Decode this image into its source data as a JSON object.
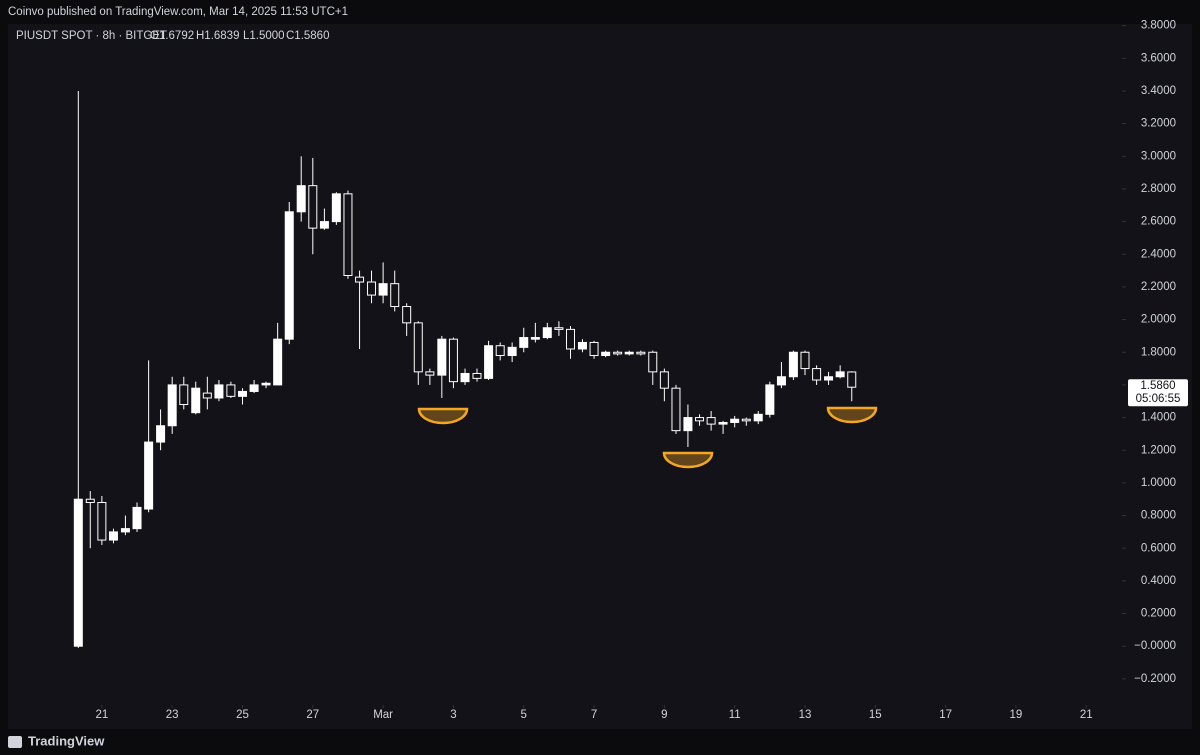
{
  "header": {
    "published": "Coinvo published on TradingView.com, Mar 14, 2025 11:53 UTC+1",
    "footer": "TradingView"
  },
  "chart_data": {
    "type": "candlestick",
    "symbol": "PIUSDT SPOT · 8h · BITGET",
    "ohlc_labels": [
      "O1.6792",
      "H1.6839",
      "L1.5000",
      "C1.5860"
    ],
    "price_label": {
      "value": 1.586,
      "label": "1.5860"
    },
    "countdown": "05:06:55",
    "colors": {
      "up": "#ffffff",
      "down": "#131218",
      "outline": "#ffffff",
      "annotation": "#f5a623"
    },
    "x": [
      -0.67,
      -0.33,
      0,
      0.33,
      0.67,
      1,
      1.33,
      1.67,
      2,
      2.33,
      2.67,
      3,
      3.33,
      3.67,
      4,
      4.33,
      4.67,
      5,
      5.33,
      5.67,
      6,
      6.33,
      6.67,
      7,
      7.33,
      7.67,
      8,
      8.33,
      8.67,
      9,
      9.33,
      9.67,
      10,
      10.33,
      10.67,
      11,
      11.33,
      11.67,
      12,
      12.33,
      12.67,
      13,
      13.33,
      13.67,
      14,
      14.33,
      14.67,
      15,
      15.33,
      15.67,
      16,
      16.33,
      16.67,
      17,
      17.33,
      17.67,
      18,
      18.33,
      18.67,
      19,
      19.33,
      19.67,
      20,
      20.33,
      20.67,
      21,
      21.33
    ],
    "open": [
      0.0,
      0.9,
      0.88,
      0.65,
      0.7,
      0.72,
      0.84,
      1.25,
      1.35,
      1.6,
      1.43,
      1.55,
      1.52,
      1.6,
      1.53,
      1.56,
      1.6,
      1.6,
      1.88,
      2.66,
      2.82,
      2.56,
      2.6,
      2.77,
      2.26,
      2.23,
      2.15,
      2.22,
      2.08,
      1.98,
      1.68,
      1.66,
      1.88,
      1.62,
      1.67,
      1.64,
      1.84,
      1.78,
      1.83,
      1.88,
      1.89,
      1.95,
      1.94,
      1.82,
      1.86,
      1.78,
      1.8,
      1.79,
      1.8,
      1.8,
      1.68,
      1.58,
      1.32,
      1.4,
      1.4,
      1.36,
      1.37,
      1.39,
      1.38,
      1.42,
      1.6,
      1.65,
      1.8,
      1.7,
      1.63,
      1.65,
      1.6792
    ],
    "high": [
      3.4,
      0.95,
      0.92,
      0.72,
      0.8,
      0.88,
      1.75,
      1.45,
      1.65,
      1.65,
      1.62,
      1.65,
      1.63,
      1.62,
      1.58,
      1.63,
      1.62,
      1.98,
      2.72,
      3.0,
      2.99,
      2.68,
      2.78,
      2.79,
      2.3,
      2.3,
      2.35,
      2.3,
      2.1,
      1.99,
      1.7,
      1.9,
      1.89,
      1.7,
      1.7,
      1.87,
      1.86,
      1.86,
      1.95,
      1.98,
      1.98,
      1.99,
      1.96,
      1.88,
      1.87,
      1.81,
      1.81,
      1.81,
      1.81,
      1.81,
      1.7,
      1.6,
      1.48,
      1.42,
      1.44,
      1.38,
      1.41,
      1.4,
      1.44,
      1.62,
      1.74,
      1.81,
      1.81,
      1.72,
      1.68,
      1.72,
      1.6839
    ],
    "low": [
      -0.01,
      0.6,
      0.62,
      0.63,
      0.68,
      0.7,
      0.82,
      1.2,
      1.3,
      1.45,
      1.42,
      1.45,
      1.5,
      1.52,
      1.48,
      1.55,
      1.58,
      1.6,
      1.85,
      2.6,
      2.4,
      2.55,
      2.58,
      2.25,
      1.82,
      2.1,
      2.1,
      2.05,
      1.9,
      1.6,
      1.6,
      1.52,
      1.58,
      1.6,
      1.62,
      1.63,
      1.75,
      1.74,
      1.8,
      1.86,
      1.88,
      1.9,
      1.76,
      1.8,
      1.76,
      1.77,
      1.78,
      1.78,
      1.78,
      1.6,
      1.5,
      1.3,
      1.22,
      1.35,
      1.32,
      1.3,
      1.34,
      1.35,
      1.36,
      1.4,
      1.58,
      1.63,
      1.66,
      1.6,
      1.6,
      1.64,
      1.5
    ],
    "close": [
      0.9,
      0.88,
      0.65,
      0.7,
      0.72,
      0.85,
      1.25,
      1.35,
      1.6,
      1.48,
      1.58,
      1.52,
      1.6,
      1.53,
      1.56,
      1.6,
      1.61,
      1.88,
      2.66,
      2.82,
      2.56,
      2.6,
      2.77,
      2.27,
      2.23,
      2.15,
      2.22,
      2.08,
      1.98,
      1.68,
      1.66,
      1.88,
      1.62,
      1.67,
      1.64,
      1.84,
      1.78,
      1.83,
      1.89,
      1.89,
      1.95,
      1.94,
      1.82,
      1.86,
      1.78,
      1.8,
      1.79,
      1.8,
      1.79,
      1.68,
      1.58,
      1.32,
      1.4,
      1.38,
      1.36,
      1.37,
      1.39,
      1.38,
      1.42,
      1.6,
      1.65,
      1.8,
      1.7,
      1.63,
      1.65,
      1.68,
      1.586
    ],
    "xlim": [
      -2.67,
      28.96
    ],
    "xticks": [
      {
        "value": 0,
        "label": "21"
      },
      {
        "value": 2,
        "label": "23"
      },
      {
        "value": 4,
        "label": "25"
      },
      {
        "value": 6,
        "label": "27"
      },
      {
        "value": 8,
        "label": "Mar"
      },
      {
        "value": 10,
        "label": "3"
      },
      {
        "value": 12,
        "label": "5"
      },
      {
        "value": 14,
        "label": "7"
      },
      {
        "value": 16,
        "label": "9"
      },
      {
        "value": 18,
        "label": "11"
      },
      {
        "value": 20,
        "label": "13"
      },
      {
        "value": 22,
        "label": "15"
      },
      {
        "value": 24,
        "label": "17"
      },
      {
        "value": 26,
        "label": "19"
      },
      {
        "value": 28,
        "label": "21"
      }
    ],
    "ylim": [
      -0.36,
      3.81
    ],
    "yticks": [
      {
        "value": 3.8,
        "label": "3.8000"
      },
      {
        "value": 3.6,
        "label": "3.6000"
      },
      {
        "value": 3.4,
        "label": "3.4000"
      },
      {
        "value": 3.2,
        "label": "3.2000"
      },
      {
        "value": 3.0,
        "label": "3.0000"
      },
      {
        "value": 2.8,
        "label": "2.8000"
      },
      {
        "value": 2.6,
        "label": "2.6000"
      },
      {
        "value": 2.4,
        "label": "2.4000"
      },
      {
        "value": 2.2,
        "label": "2.2000"
      },
      {
        "value": 2.0,
        "label": "2.0000"
      },
      {
        "value": 1.8,
        "label": "1.8000"
      },
      {
        "value": 1.6,
        "label": "1.6000"
      },
      {
        "value": 1.4,
        "label": "1.4000"
      },
      {
        "value": 1.2,
        "label": "1.2000"
      },
      {
        "value": 1.0,
        "label": "1.0000"
      },
      {
        "value": 0.8,
        "label": "0.8000"
      },
      {
        "value": 0.6,
        "label": "0.6000"
      },
      {
        "value": 0.4,
        "label": "0.4000"
      },
      {
        "value": 0.2,
        "label": "0.2000"
      },
      {
        "value": 0,
        "label": "−0.0000"
      },
      {
        "value": -0.2,
        "label": "−0.2000"
      }
    ],
    "grid": false
  }
}
